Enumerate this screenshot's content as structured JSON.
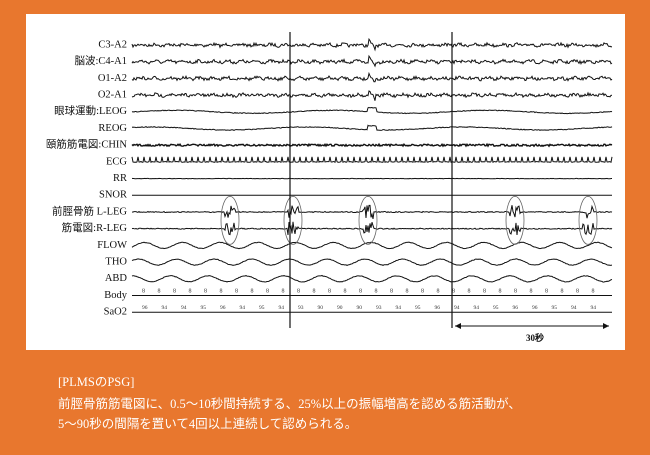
{
  "figure": {
    "channels": [
      "C3-A2",
      "脳波:C4-A1",
      "O1-A2",
      "O2-A1",
      "眼球運動:LEOG",
      "REOG",
      "頤筋筋電図:CHIN",
      "ECG",
      "RR",
      "SNOR",
      "前脛骨筋 L-LEG",
      "筋電図:R-LEG",
      "FLOW",
      "THO",
      "ABD",
      "Body",
      "SaO2"
    ],
    "body_marks": [
      "8",
      "8",
      "8",
      "8",
      "8",
      "8",
      "8",
      "8",
      "8",
      "8",
      "8",
      "8",
      "8",
      "8",
      "8",
      "8",
      "8",
      "8",
      "8",
      "8",
      "8",
      "8",
      "8",
      "8",
      "8",
      "8",
      "8",
      "8",
      "8",
      "8"
    ],
    "sao2_values": [
      "96",
      "94",
      "94",
      "95",
      "96",
      "94",
      "95",
      "94",
      "93",
      "90",
      "90",
      "90",
      "93",
      "94",
      "95",
      "96",
      "94",
      "94",
      "95",
      "96",
      "96",
      "95",
      "94",
      "94"
    ],
    "scale_label": "30秒"
  },
  "caption": {
    "title": "[PLMSのPSG]",
    "lines": [
      "前脛骨筋筋電図に、0.5～10秒間持続する、25%以上の振幅増高を認める筋活動が、",
      "5～90秒の間隔を置いて4回以上連続して認められる。"
    ]
  }
}
